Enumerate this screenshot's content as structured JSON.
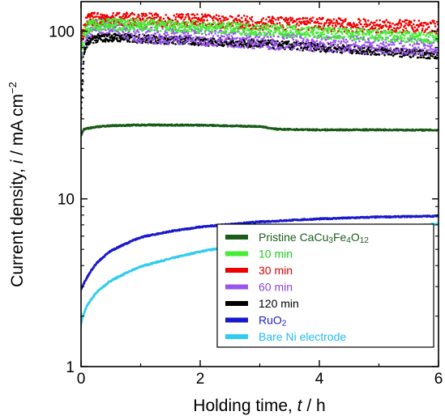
{
  "chart_data": {
    "type": "scatter",
    "xlabel_parts": [
      "Holding time, ",
      "t",
      " / h"
    ],
    "ylabel_parts": [
      "Current density, ",
      "i",
      " / mA cm",
      "−2"
    ],
    "xlim": [
      0,
      6
    ],
    "ylim": [
      1,
      150
    ],
    "yscale": "log",
    "xticks": [
      0,
      2,
      4,
      6
    ],
    "xtick_labels": [
      "0",
      "2",
      "4",
      "6"
    ],
    "yticks": [
      1,
      10,
      100
    ],
    "ytick_labels": [
      "1",
      "10",
      "100"
    ],
    "grid": false,
    "legend_position": "bottom-right",
    "series": [
      {
        "name": "Pristine CaCu3Fe4O12",
        "name_parts": [
          "Pristine CaCu",
          "3",
          "Fe",
          "4",
          "O",
          "12"
        ],
        "color": "#1a5c1a",
        "label_color": "#1a5c1a",
        "x": [
          0,
          0.05,
          0.15,
          0.3,
          0.5,
          1.0,
          2.0,
          3.0,
          3.3,
          4.0,
          5.0,
          6.0
        ],
        "y": [
          24,
          26,
          26.5,
          27,
          27.3,
          27.6,
          27.5,
          27,
          26,
          25.8,
          25.8,
          25.7
        ]
      },
      {
        "name": "10 min",
        "name_parts": [
          "10 min"
        ],
        "color": "#44ee33",
        "label_color": "#22cc22",
        "x": [
          0,
          0.05,
          0.1,
          0.2,
          0.5,
          1.0,
          2.0,
          3.0,
          4.0,
          5.0,
          6.0
        ],
        "y": [
          70,
          95,
          105,
          108,
          110,
          109,
          106,
          102,
          98,
          94,
          90
        ]
      },
      {
        "name": "30 min",
        "name_parts": [
          "30 min"
        ],
        "color": "#ee0000",
        "label_color": "#dd0000",
        "x": [
          0,
          0.05,
          0.1,
          0.2,
          0.5,
          1.0,
          2.0,
          3.0,
          4.0,
          5.0,
          6.0
        ],
        "y": [
          80,
          105,
          115,
          118,
          118,
          117,
          115,
          112,
          110,
          107,
          105
        ]
      },
      {
        "name": "60 min",
        "name_parts": [
          "60 min"
        ],
        "color": "#9955ee",
        "label_color": "#8844dd",
        "x": [
          0,
          0.05,
          0.1,
          0.2,
          0.5,
          0.8,
          1.0,
          2.0,
          3.0,
          4.0,
          5.0,
          6.0
        ],
        "y": [
          60,
          90,
          100,
          105,
          110,
          100,
          95,
          92,
          88,
          85,
          82,
          80
        ]
      },
      {
        "name": "120 min",
        "name_parts": [
          "120 min"
        ],
        "color": "#000000",
        "label_color": "#000000",
        "x": [
          0,
          0.05,
          0.1,
          0.2,
          0.5,
          1.0,
          2.0,
          3.0,
          4.0,
          5.0,
          6.0
        ],
        "y": [
          30,
          75,
          85,
          90,
          92,
          90,
          87,
          84,
          80,
          76,
          72
        ]
      },
      {
        "name": "RuO2",
        "name_parts": [
          "RuO",
          "2"
        ],
        "color": "#1a1acc",
        "label_color": "#1a1acc",
        "x": [
          0,
          0.02,
          0.1,
          0.25,
          0.5,
          1.0,
          1.5,
          2.0,
          3.0,
          4.0,
          5.0,
          6.0
        ],
        "y": [
          2.9,
          3.0,
          3.4,
          4.1,
          4.9,
          5.9,
          6.4,
          6.8,
          7.3,
          7.6,
          7.8,
          7.9
        ]
      },
      {
        "name": "Bare Ni electrode",
        "name_parts": [
          "Bare Ni electrode"
        ],
        "color": "#33ccee",
        "label_color": "#22bbee",
        "x": [
          0,
          0.03,
          0.1,
          0.25,
          0.5,
          1.0,
          2.0,
          3.0,
          4.0,
          5.0,
          6.0
        ],
        "y": [
          1.8,
          2.0,
          2.3,
          2.75,
          3.25,
          3.95,
          4.85,
          5.55,
          6.1,
          6.6,
          7.1
        ]
      }
    ]
  }
}
